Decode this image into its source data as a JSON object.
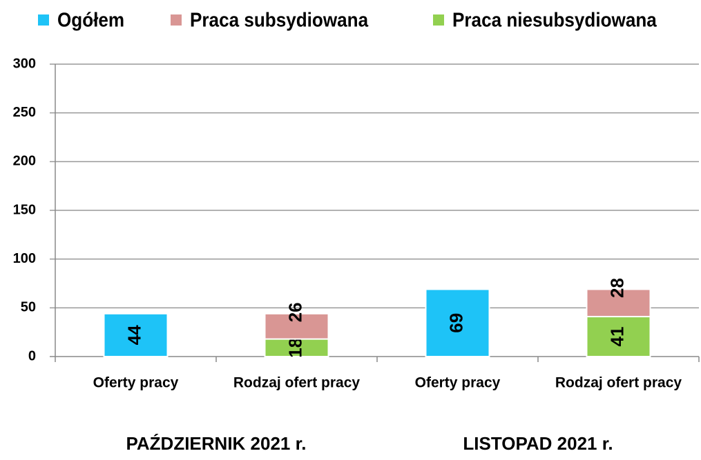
{
  "chart_data": {
    "type": "stacked_bar",
    "categories": [
      "Oferty pracy",
      "Rodzaj ofert pracy",
      "Oferty pracy",
      "Rodzaj ofert pracy"
    ],
    "groups": [
      "PAŹDZIERNIK 2021 r.",
      "LISTOPAD 2021 r."
    ],
    "series": [
      {
        "name": "Ogółem",
        "color": "#1ec3f7",
        "values": [
          44,
          null,
          69,
          null
        ]
      },
      {
        "name": "Praca subsydiowana",
        "color": "#d99694",
        "values": [
          null,
          26,
          null,
          28
        ]
      },
      {
        "name": "Praca niesubsydiowana",
        "color": "#92d050",
        "values": [
          null,
          18,
          null,
          41
        ]
      }
    ],
    "stack_order": [
      0,
      2,
      1
    ],
    "ylim": [
      0,
      300
    ],
    "yticks": [
      0,
      50,
      100,
      150,
      200,
      250,
      300
    ],
    "grid": true
  }
}
